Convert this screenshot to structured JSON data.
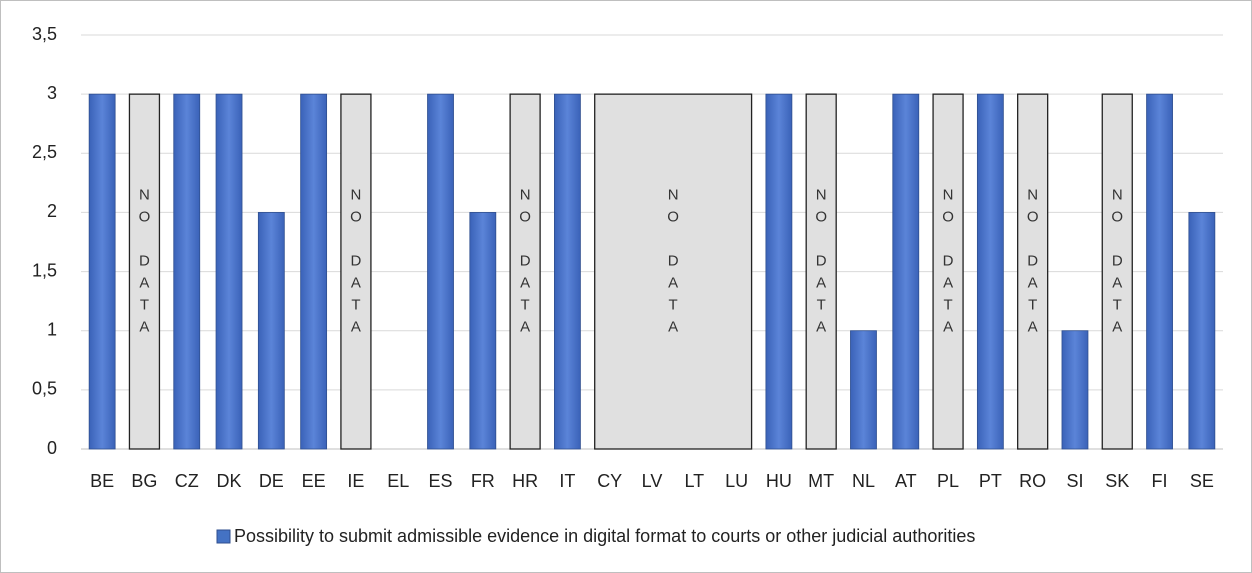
{
  "chart_data": {
    "type": "bar",
    "categories": [
      "BE",
      "BG",
      "CZ",
      "DK",
      "DE",
      "EE",
      "IE",
      "EL",
      "ES",
      "FR",
      "HR",
      "IT",
      "CY",
      "LV",
      "LT",
      "LU",
      "HU",
      "MT",
      "NL",
      "AT",
      "PL",
      "PT",
      "RO",
      "SI",
      "SK",
      "FI",
      "SE"
    ],
    "series": [
      {
        "name": "Possibility to submit admissible evidence in digital format to courts or other judicial authorities",
        "color": "#4472c4",
        "values": [
          3,
          null,
          3,
          3,
          2,
          3,
          null,
          null,
          3,
          2,
          null,
          3,
          null,
          null,
          null,
          null,
          3,
          null,
          1,
          3,
          null,
          3,
          null,
          1,
          null,
          3,
          2
        ]
      }
    ],
    "no_data": {
      "label": "NO DATA",
      "value": 3,
      "color": "#e0e0e0",
      "groups": [
        [
          "BG"
        ],
        [
          "IE"
        ],
        [
          "HR"
        ],
        [
          "CY",
          "LV",
          "LT",
          "LU"
        ],
        [
          "MT"
        ],
        [
          "PL"
        ],
        [
          "RO"
        ],
        [
          "SK"
        ]
      ]
    },
    "ylim": [
      0,
      3.5
    ],
    "yticks": [
      0,
      {
        "value": 0.5,
        "label": "0,5"
      },
      1,
      {
        "value": 1.5,
        "label": "1,5"
      },
      2,
      {
        "value": 2.5,
        "label": "2,5"
      },
      3,
      {
        "value": 3.5,
        "label": "3,5"
      }
    ],
    "grid": true,
    "legend": "bottom"
  }
}
